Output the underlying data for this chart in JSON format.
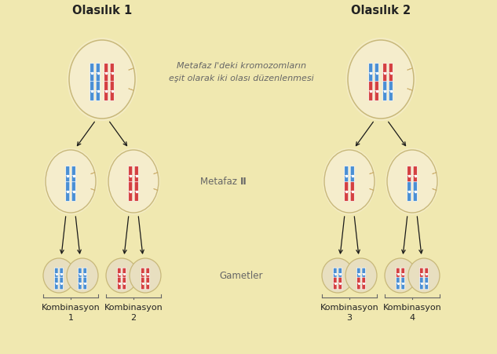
{
  "bg_color": "#f0e8b0",
  "title_left": "Olasılık 1",
  "title_right": "Olasılık 2",
  "center_text_line1": "Metafaz I'deki kromozomların",
  "center_text_line2": "eşit olarak iki olası düzenlenmesi",
  "metafaz_label_normal": "Metafaz ",
  "metafaz_label_bold": "II",
  "gametler_label": "Gametler",
  "blue_color": "#4a8fd4",
  "red_color": "#d44040",
  "cell_fill": "#f5edcc",
  "cell_fill_gamete": "#e8dfc0",
  "cell_edge": "#c8b87a",
  "spindle_color": "#c8a860",
  "arrow_color": "#1a1a1a",
  "text_color": "#666666",
  "title_color": "#222222",
  "brace_color": "#666666",
  "font_size_title": 10.5,
  "font_size_label": 8.5,
  "font_size_center": 8.0,
  "font_size_kombinas": 8.0
}
